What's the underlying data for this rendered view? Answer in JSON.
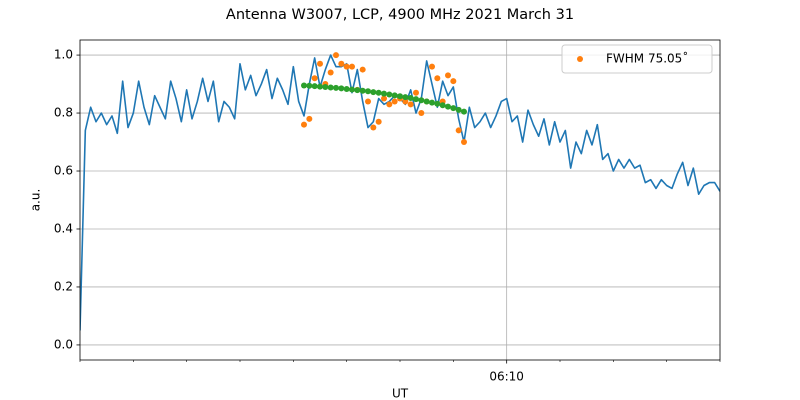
{
  "chart_data": {
    "type": "line",
    "title": "Antenna W3007, LCP, 4900 MHz 2021 March 31",
    "xlabel": "UT",
    "ylabel": "a.u.",
    "xlim": [
      2,
      14
    ],
    "xticks": [
      {
        "value": 10,
        "label": "06:10"
      }
    ],
    "xminorticks": [
      2,
      3,
      4,
      5,
      6,
      7,
      8,
      9,
      11,
      12,
      13,
      14
    ],
    "ylim": [
      -0.052,
      1.052
    ],
    "yticks": [
      {
        "value": 0,
        "label": "0.0"
      },
      {
        "value": 0.2,
        "label": "0.2"
      },
      {
        "value": 0.4,
        "label": "0.4"
      },
      {
        "value": 0.6,
        "label": "0.6"
      },
      {
        "value": 0.8,
        "label": "0.8"
      },
      {
        "value": 1,
        "label": "1.0"
      }
    ],
    "grid": true,
    "legend": "upper right",
    "series": [
      {
        "color": "#1f77b4",
        "mode": "line",
        "x": [
          2.0,
          2.1,
          2.2,
          2.3,
          2.4,
          2.5,
          2.6,
          2.7,
          2.8,
          2.9,
          3.0,
          3.1,
          3.2,
          3.3,
          3.4,
          3.5,
          3.6,
          3.7,
          3.8,
          3.9,
          4.0,
          4.1,
          4.2,
          4.3,
          4.4,
          4.5,
          4.6,
          4.7,
          4.8,
          4.9,
          5.0,
          5.1,
          5.2,
          5.3,
          5.4,
          5.5,
          5.6,
          5.7,
          5.8,
          5.9,
          6.0,
          6.1,
          6.2,
          6.3,
          6.4,
          6.5,
          6.6,
          6.7,
          6.8,
          6.9,
          7.0,
          7.1,
          7.2,
          7.3,
          7.4,
          7.5,
          7.6,
          7.7,
          7.8,
          7.9,
          8.0,
          8.1,
          8.2,
          8.3,
          8.4,
          8.5,
          8.6,
          8.7,
          8.8,
          8.9,
          9.0,
          9.1,
          9.2,
          9.3,
          9.4,
          9.5,
          9.6,
          9.7,
          9.8,
          9.9,
          10.0,
          10.1,
          10.2,
          10.3,
          10.4,
          10.5,
          10.6,
          10.7,
          10.8,
          10.9,
          11.0,
          11.1,
          11.2,
          11.3,
          11.4,
          11.5,
          11.6,
          11.7,
          11.8,
          11.9,
          12.0,
          12.1,
          12.2,
          12.3,
          12.4,
          12.5,
          12.6,
          12.7,
          12.8,
          12.9,
          13.0,
          13.1,
          13.2,
          13.3,
          13.4,
          13.5,
          13.6,
          13.7,
          13.8,
          13.9,
          14.0
        ],
        "values": [
          0.05,
          0.74,
          0.82,
          0.77,
          0.8,
          0.76,
          0.79,
          0.73,
          0.91,
          0.75,
          0.8,
          0.91,
          0.82,
          0.76,
          0.86,
          0.82,
          0.78,
          0.91,
          0.85,
          0.77,
          0.88,
          0.78,
          0.84,
          0.92,
          0.84,
          0.91,
          0.77,
          0.84,
          0.82,
          0.78,
          0.97,
          0.88,
          0.93,
          0.86,
          0.9,
          0.95,
          0.85,
          0.92,
          0.88,
          0.83,
          0.96,
          0.84,
          0.79,
          0.9,
          0.99,
          0.89,
          0.95,
          1.0,
          0.96,
          0.96,
          0.97,
          0.87,
          0.95,
          0.84,
          0.75,
          0.77,
          0.85,
          0.83,
          0.84,
          0.86,
          0.85,
          0.83,
          0.88,
          0.8,
          0.85,
          0.98,
          0.9,
          0.82,
          0.91,
          0.86,
          0.89,
          0.78,
          0.7,
          0.82,
          0.75,
          0.77,
          0.8,
          0.75,
          0.79,
          0.84,
          0.85,
          0.77,
          0.79,
          0.7,
          0.81,
          0.76,
          0.72,
          0.78,
          0.69,
          0.77,
          0.7,
          0.74,
          0.61,
          0.7,
          0.66,
          0.74,
          0.69,
          0.76,
          0.64,
          0.66,
          0.6,
          0.64,
          0.61,
          0.64,
          0.61,
          0.62,
          0.56,
          0.57,
          0.54,
          0.57,
          0.55,
          0.54,
          0.59,
          0.63,
          0.55,
          0.61,
          0.52,
          0.55,
          0.56,
          0.56,
          0.53
        ]
      },
      {
        "name": "FWHM 75.05˚",
        "color": "#ff7f0e",
        "mode": "markers",
        "x": [
          6.2,
          6.3,
          6.4,
          6.5,
          6.6,
          6.7,
          6.8,
          6.9,
          7.0,
          7.1,
          7.2,
          7.3,
          7.4,
          7.5,
          7.6,
          7.7,
          7.8,
          7.9,
          8.0,
          8.1,
          8.2,
          8.3,
          8.4,
          8.5,
          8.6,
          8.7,
          8.8,
          8.9,
          9.0,
          9.1,
          9.2
        ],
        "values": [
          0.76,
          0.78,
          0.92,
          0.97,
          0.9,
          0.94,
          1.0,
          0.97,
          0.96,
          0.96,
          0.88,
          0.95,
          0.84,
          0.75,
          0.77,
          0.85,
          0.83,
          0.84,
          0.85,
          0.84,
          0.83,
          0.87,
          0.8,
          0.84,
          0.96,
          0.92,
          0.84,
          0.93,
          0.91,
          0.74,
          0.7
        ]
      },
      {
        "color": "#2ca02c",
        "mode": "markers",
        "x": [
          6.2,
          6.3,
          6.4,
          6.5,
          6.6,
          6.7,
          6.8,
          6.9,
          7.0,
          7.1,
          7.2,
          7.3,
          7.4,
          7.5,
          7.6,
          7.7,
          7.8,
          7.9,
          8.0,
          8.1,
          8.2,
          8.3,
          8.4,
          8.5,
          8.6,
          8.7,
          8.8,
          8.9,
          9.0,
          9.1,
          9.2
        ],
        "values": [
          0.895,
          0.894,
          0.893,
          0.891,
          0.89,
          0.888,
          0.887,
          0.885,
          0.883,
          0.881,
          0.879,
          0.877,
          0.875,
          0.872,
          0.87,
          0.867,
          0.864,
          0.861,
          0.858,
          0.855,
          0.852,
          0.848,
          0.844,
          0.84,
          0.836,
          0.832,
          0.827,
          0.822,
          0.817,
          0.811,
          0.805
        ]
      }
    ]
  }
}
